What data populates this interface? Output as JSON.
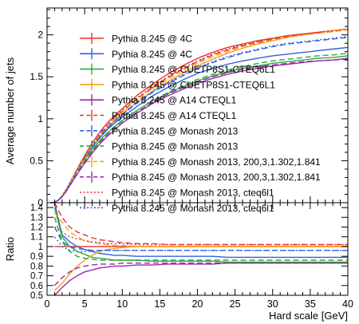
{
  "chart_data": [
    {
      "type": "line",
      "panel": "main",
      "xlabel": "",
      "ylabel": "Average number of jets",
      "xlim": [
        0,
        40
      ],
      "ylim": [
        0,
        2.32
      ],
      "yticks": [
        0,
        0.5,
        1,
        1.5,
        2
      ],
      "ytick_labels": [
        "0",
        "0.5",
        "1",
        "1.5",
        "2"
      ],
      "grid": false,
      "legend_position": "top-left",
      "x": [
        0.5,
        1,
        1.5,
        2,
        2.5,
        3,
        4,
        5,
        6,
        7,
        8,
        9,
        10,
        12,
        14,
        16,
        18,
        20,
        22,
        24,
        26,
        28,
        30,
        32,
        34,
        36,
        38,
        40
      ],
      "series": [
        {
          "name": "Pythia 8.245 @ 4C",
          "color": "#e8312b",
          "dash": "solid",
          "values": [
            0.0,
            0.005,
            0.03,
            0.08,
            0.15,
            0.23,
            0.4,
            0.56,
            0.71,
            0.84,
            0.95,
            1.04,
            1.12,
            1.28,
            1.41,
            1.53,
            1.63,
            1.72,
            1.79,
            1.85,
            1.89,
            1.93,
            1.96,
            1.99,
            2.01,
            2.03,
            2.05,
            2.07
          ]
        },
        {
          "name": "Pythia 8.245 @ 4C",
          "color": "#3060e0",
          "dash": "solid",
          "values": [
            0.0,
            0.005,
            0.03,
            0.08,
            0.15,
            0.23,
            0.39,
            0.53,
            0.66,
            0.77,
            0.87,
            0.95,
            1.02,
            1.15,
            1.27,
            1.37,
            1.46,
            1.54,
            1.6,
            1.65,
            1.69,
            1.72,
            1.75,
            1.77,
            1.79,
            1.81,
            1.83,
            1.85
          ]
        },
        {
          "name": "Pythia 8.245 @ CUETP8S1-CTEQ6L1",
          "color": "#2aaa3a",
          "dash": "solid",
          "values": [
            0.0,
            0.005,
            0.03,
            0.08,
            0.15,
            0.23,
            0.38,
            0.51,
            0.63,
            0.74,
            0.83,
            0.91,
            0.98,
            1.1,
            1.21,
            1.3,
            1.38,
            1.45,
            1.51,
            1.56,
            1.6,
            1.63,
            1.66,
            1.68,
            1.7,
            1.72,
            1.73,
            1.75
          ]
        },
        {
          "name": "Pythia 8.245 @ CUETP8S1-CTEQ6L1",
          "color": "#f0a020",
          "dash": "solid",
          "values": [
            0.0,
            0.005,
            0.03,
            0.08,
            0.15,
            0.23,
            0.38,
            0.52,
            0.66,
            0.78,
            0.89,
            0.98,
            1.06,
            1.2,
            1.33,
            1.44,
            1.54,
            1.63,
            1.71,
            1.78,
            1.84,
            1.89,
            1.93,
            1.97,
            2.0,
            2.02,
            2.05,
            2.07
          ]
        },
        {
          "name": "Pythia 8.245 @ A14 CTEQL1",
          "color": "#9a2aa8",
          "dash": "solid",
          "values": [
            0.0,
            0.005,
            0.03,
            0.07,
            0.13,
            0.2,
            0.34,
            0.47,
            0.59,
            0.7,
            0.79,
            0.87,
            0.95,
            1.07,
            1.18,
            1.27,
            1.35,
            1.42,
            1.48,
            1.53,
            1.57,
            1.6,
            1.63,
            1.65,
            1.67,
            1.69,
            1.7,
            1.72
          ]
        },
        {
          "name": "Pythia 8.245 @ A14 CTEQL1",
          "color": "#e8312b",
          "dash": "dashed",
          "values": [
            0.0,
            0.005,
            0.03,
            0.08,
            0.15,
            0.23,
            0.39,
            0.54,
            0.68,
            0.81,
            0.92,
            1.01,
            1.09,
            1.24,
            1.37,
            1.49,
            1.59,
            1.68,
            1.76,
            1.82,
            1.87,
            1.91,
            1.95,
            1.98,
            2.0,
            2.02,
            2.04,
            2.06
          ]
        },
        {
          "name": "Pythia 8.245 @ Monash 2013",
          "color": "#3060e0",
          "dash": "dashed",
          "values": [
            0.0,
            0.005,
            0.03,
            0.08,
            0.15,
            0.23,
            0.39,
            0.53,
            0.66,
            0.78,
            0.88,
            0.97,
            1.05,
            1.19,
            1.31,
            1.42,
            1.51,
            1.6,
            1.67,
            1.73,
            1.78,
            1.82,
            1.86,
            1.89,
            1.91,
            1.93,
            1.95,
            1.97
          ]
        },
        {
          "name": "Pythia 8.245 @ Monash 2013",
          "color": "#2aaa3a",
          "dash": "dashed",
          "values": [
            0.0,
            0.005,
            0.03,
            0.08,
            0.15,
            0.22,
            0.37,
            0.5,
            0.62,
            0.73,
            0.82,
            0.9,
            0.97,
            1.1,
            1.21,
            1.31,
            1.39,
            1.47,
            1.53,
            1.58,
            1.62,
            1.66,
            1.69,
            1.71,
            1.73,
            1.75,
            1.76,
            1.78
          ]
        },
        {
          "name": "Pythia 8.245 @ Monash 2013, 200,3,1.302,1.841",
          "color": "#f0a020",
          "dash": "dashed",
          "values": [
            0.0,
            0.005,
            0.03,
            0.08,
            0.15,
            0.23,
            0.39,
            0.54,
            0.68,
            0.8,
            0.91,
            1.0,
            1.08,
            1.23,
            1.36,
            1.47,
            1.57,
            1.66,
            1.74,
            1.8,
            1.86,
            1.9,
            1.94,
            1.97,
            2.0,
            2.02,
            2.04,
            2.06
          ]
        },
        {
          "name": "Pythia 8.245 @ Monash 2013, 200,3,1.302,1.841",
          "color": "#9a2aa8",
          "dash": "dashed",
          "values": [
            0.0,
            0.005,
            0.03,
            0.07,
            0.13,
            0.2,
            0.35,
            0.48,
            0.6,
            0.71,
            0.8,
            0.88,
            0.95,
            1.08,
            1.19,
            1.29,
            1.37,
            1.44,
            1.5,
            1.55,
            1.59,
            1.62,
            1.64,
            1.66,
            1.68,
            1.69,
            1.7,
            1.71
          ]
        },
        {
          "name": "Pythia 8.245 @ Monash 2013, cteq6l1",
          "color": "#e8312b",
          "dash": "dotted",
          "values": [
            0.0,
            0.005,
            0.03,
            0.08,
            0.15,
            0.23,
            0.39,
            0.54,
            0.68,
            0.81,
            0.92,
            1.02,
            1.1,
            1.25,
            1.38,
            1.5,
            1.6,
            1.69,
            1.77,
            1.83,
            1.88,
            1.92,
            1.96,
            1.99,
            2.01,
            2.03,
            2.05,
            2.07
          ]
        },
        {
          "name": "Pythia 8.245 @ Monash 2013, cteq6l1",
          "color": "#3060e0",
          "dash": "dotted",
          "values": [
            0.0,
            0.005,
            0.03,
            0.08,
            0.15,
            0.23,
            0.39,
            0.54,
            0.67,
            0.79,
            0.89,
            0.98,
            1.06,
            1.2,
            1.32,
            1.43,
            1.52,
            1.61,
            1.68,
            1.74,
            1.79,
            1.83,
            1.87,
            1.9,
            1.92,
            1.94,
            1.96,
            1.98
          ]
        }
      ]
    },
    {
      "type": "line",
      "panel": "ratio",
      "xlabel": "Hard scale [GeV]",
      "ylabel": "Ratio",
      "xlim": [
        0,
        40
      ],
      "ylim": [
        0.5,
        1.45
      ],
      "xticks": [
        0,
        5,
        10,
        15,
        20,
        25,
        30,
        35,
        40
      ],
      "xtick_labels": [
        "0",
        "5",
        "10",
        "15",
        "20",
        "25",
        "30",
        "35",
        "40"
      ],
      "yticks": [
        0.5,
        0.6,
        0.7,
        0.8,
        0.9,
        1,
        1.1,
        1.2,
        1.3,
        1.4
      ],
      "ytick_labels": [
        "0.5",
        "0.6",
        "0.7",
        "0.8",
        "0.9",
        "1",
        "1.1",
        "1.2",
        "1.3",
        "1.4"
      ],
      "reference_series": "Pythia 8.245 @ 4C",
      "x": [
        1,
        2,
        3,
        4,
        5,
        6,
        7,
        8,
        9,
        10,
        12,
        14,
        16,
        18,
        20,
        22,
        24,
        26,
        28,
        30,
        32,
        34,
        36,
        38,
        40
      ],
      "series": [
        {
          "color": "#e8312b",
          "dash": "solid",
          "values": [
            1.0,
            1.0,
            1.0,
            1.0,
            1.0,
            1.0,
            1.0,
            1.0,
            1.0,
            1.0,
            1.0,
            1.0,
            1.0,
            1.0,
            1.0,
            1.0,
            1.0,
            1.0,
            1.0,
            1.0,
            1.0,
            1.0,
            1.0,
            1.0,
            1.0
          ]
        },
        {
          "color": "#3060e0",
          "dash": "solid",
          "values": [
            1.45,
            1.12,
            1.05,
            1.0,
            0.97,
            0.95,
            0.93,
            0.92,
            0.91,
            0.91,
            0.9,
            0.9,
            0.9,
            0.9,
            0.9,
            0.9,
            0.89,
            0.89,
            0.89,
            0.89,
            0.89,
            0.89,
            0.89,
            0.89,
            0.89
          ]
        },
        {
          "color": "#2aaa3a",
          "dash": "solid",
          "values": [
            1.4,
            1.1,
            1.0,
            0.95,
            0.92,
            0.89,
            0.88,
            0.87,
            0.86,
            0.86,
            0.86,
            0.85,
            0.85,
            0.85,
            0.85,
            0.85,
            0.84,
            0.84,
            0.84,
            0.84,
            0.84,
            0.84,
            0.84,
            0.84,
            0.84
          ]
        },
        {
          "color": "#f0a020",
          "dash": "solid",
          "values": [
            0.55,
            0.62,
            0.72,
            0.8,
            0.86,
            0.91,
            0.95,
            0.97,
            0.98,
            0.99,
            1.0,
            1.0,
            1.0,
            1.0,
            1.0,
            1.0,
            1.0,
            1.0,
            1.0,
            1.0,
            1.0,
            1.0,
            1.0,
            1.0,
            1.0
          ]
        },
        {
          "color": "#9a2aa8",
          "dash": "solid",
          "values": [
            0.5,
            0.58,
            0.65,
            0.7,
            0.74,
            0.76,
            0.78,
            0.79,
            0.8,
            0.8,
            0.81,
            0.81,
            0.82,
            0.82,
            0.82,
            0.82,
            0.83,
            0.83,
            0.83,
            0.83,
            0.83,
            0.83,
            0.83,
            0.83,
            0.83
          ]
        },
        {
          "color": "#e8312b",
          "dash": "dashed",
          "values": [
            1.45,
            1.3,
            1.2,
            1.15,
            1.12,
            1.09,
            1.07,
            1.06,
            1.05,
            1.04,
            1.03,
            1.03,
            1.02,
            1.02,
            1.02,
            1.02,
            1.02,
            1.02,
            1.02,
            1.02,
            1.02,
            1.02,
            1.02,
            1.02,
            1.02
          ]
        },
        {
          "color": "#3060e0",
          "dash": "dashed",
          "values": [
            1.2,
            1.05,
            1.0,
            0.98,
            0.97,
            0.96,
            0.96,
            0.96,
            0.96,
            0.96,
            0.96,
            0.96,
            0.96,
            0.96,
            0.96,
            0.96,
            0.96,
            0.96,
            0.96,
            0.96,
            0.96,
            0.96,
            0.96,
            0.96,
            0.96
          ]
        },
        {
          "color": "#2aaa3a",
          "dash": "dashed",
          "values": [
            1.3,
            1.05,
            0.95,
            0.9,
            0.88,
            0.87,
            0.86,
            0.86,
            0.86,
            0.86,
            0.86,
            0.86,
            0.86,
            0.86,
            0.86,
            0.86,
            0.86,
            0.86,
            0.86,
            0.86,
            0.86,
            0.86,
            0.86,
            0.86,
            0.86
          ]
        },
        {
          "color": "#f0a020",
          "dash": "dashed",
          "values": [
            1.35,
            1.25,
            1.15,
            1.1,
            1.06,
            1.04,
            1.03,
            1.02,
            1.01,
            1.01,
            1.0,
            1.0,
            1.0,
            1.0,
            1.0,
            1.0,
            1.0,
            1.0,
            1.0,
            1.0,
            1.0,
            1.0,
            1.0,
            1.0,
            1.0
          ]
        },
        {
          "color": "#9a2aa8",
          "dash": "dashed",
          "values": [
            0.6,
            0.68,
            0.74,
            0.78,
            0.8,
            0.81,
            0.82,
            0.82,
            0.82,
            0.83,
            0.83,
            0.83,
            0.83,
            0.83,
            0.83,
            0.83,
            0.83,
            0.83,
            0.83,
            0.83,
            0.83,
            0.83,
            0.83,
            0.83,
            0.83
          ]
        },
        {
          "color": "#e8312b",
          "dash": "dotted",
          "values": [
            1.2,
            1.15,
            1.1,
            1.08,
            1.06,
            1.05,
            1.04,
            1.03,
            1.03,
            1.03,
            1.02,
            1.02,
            1.02,
            1.02,
            1.02,
            1.02,
            1.02,
            1.02,
            1.02,
            1.02,
            1.02,
            1.02,
            1.02,
            1.02,
            1.02
          ]
        },
        {
          "color": "#3060e0",
          "dash": "dotted",
          "values": [
            1.1,
            1.0,
            0.96,
            0.95,
            0.95,
            0.95,
            0.96,
            0.96,
            0.96,
            0.96,
            0.96,
            0.96,
            0.96,
            0.96,
            0.96,
            0.96,
            0.96,
            0.96,
            0.96,
            0.96,
            0.96,
            0.96,
            0.96,
            0.96,
            0.96
          ]
        }
      ]
    }
  ]
}
